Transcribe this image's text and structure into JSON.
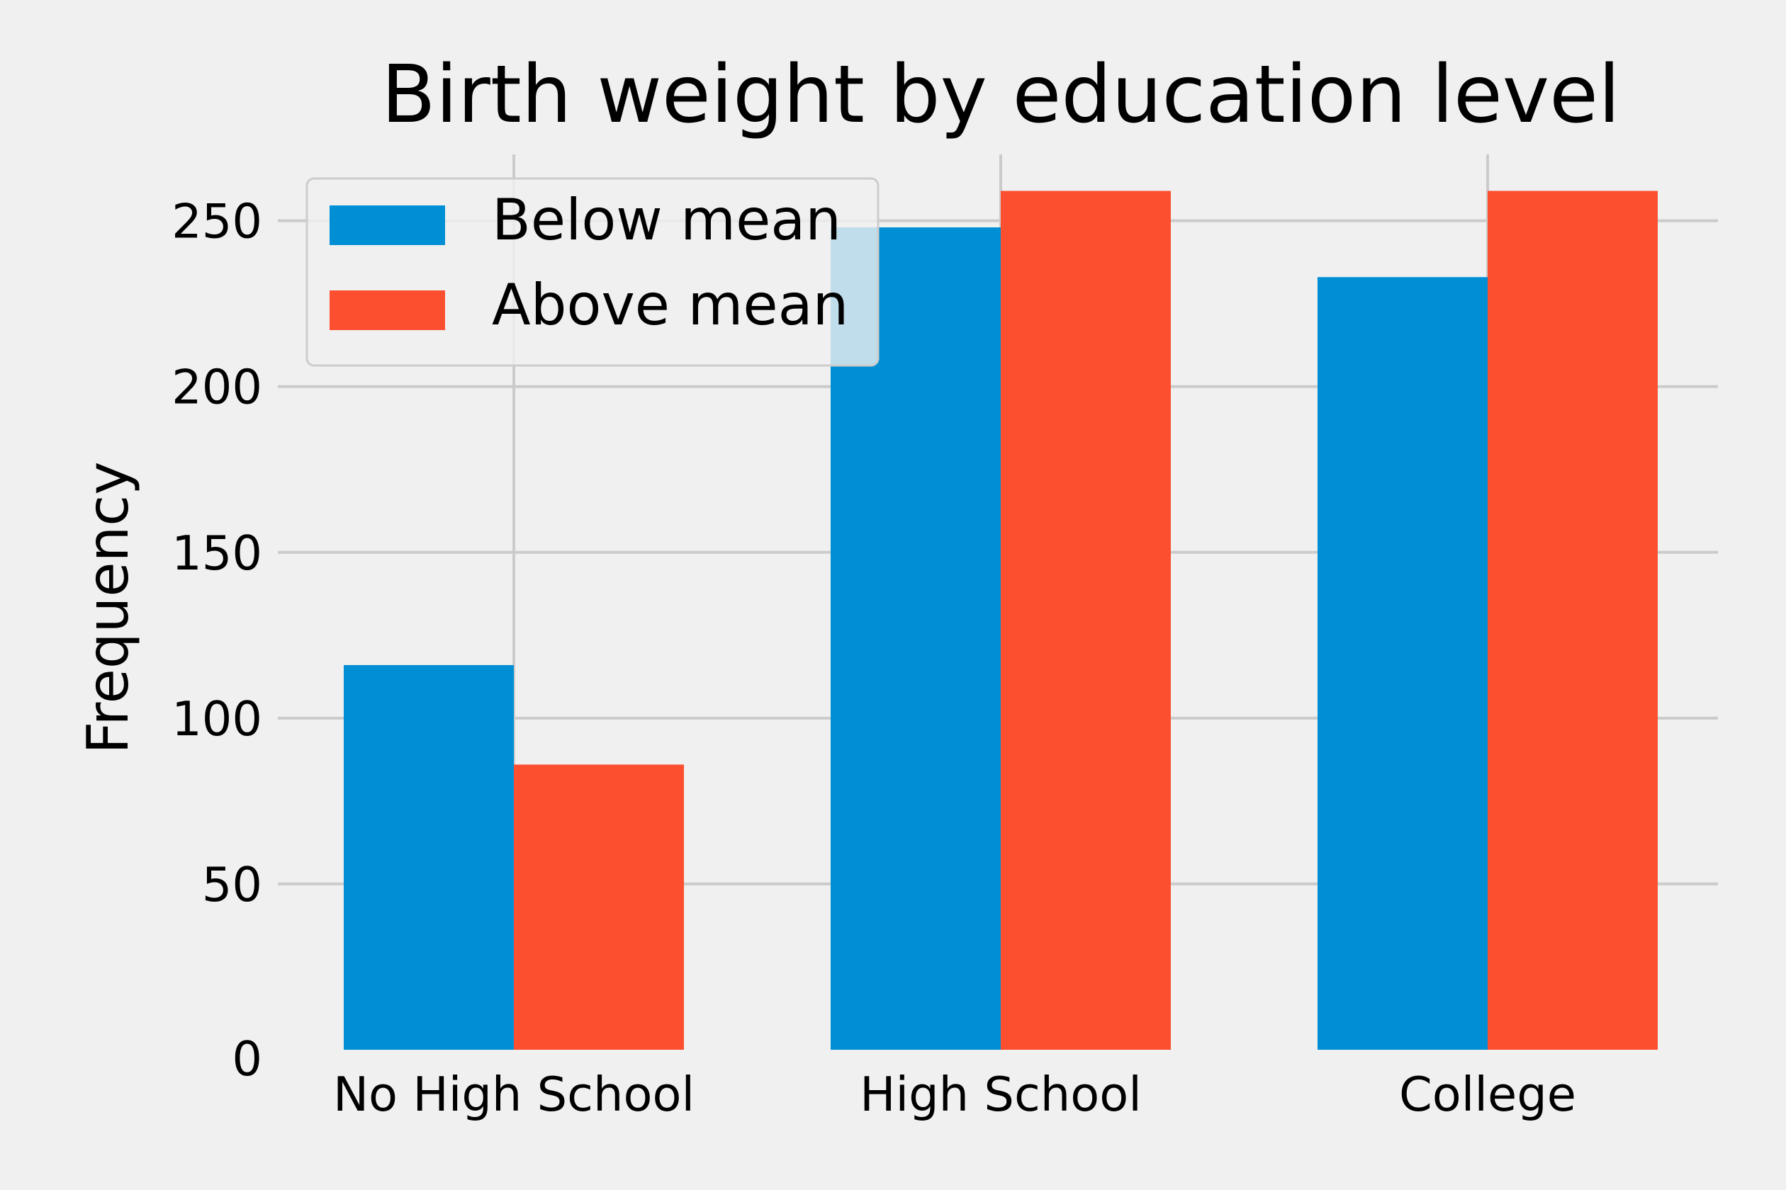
{
  "chart_data": {
    "type": "bar",
    "title": "Birth weight by education level",
    "xlabel": "",
    "ylabel": "Frequency",
    "categories": [
      "No High School",
      "High School",
      "College"
    ],
    "series": [
      {
        "name": "Below mean",
        "color": "#008fd5",
        "values": [
          116,
          248,
          233
        ]
      },
      {
        "name": "Above mean",
        "color": "#fc4f30",
        "values": [
          86,
          259,
          259
        ]
      }
    ],
    "ylim": [
      0,
      270
    ],
    "yticks": [
      0,
      50,
      100,
      150,
      200,
      250
    ],
    "ytick_labels": [
      "0",
      "50",
      "100",
      "150",
      "200",
      "250"
    ],
    "grid": true,
    "legend_position": "upper-left"
  }
}
